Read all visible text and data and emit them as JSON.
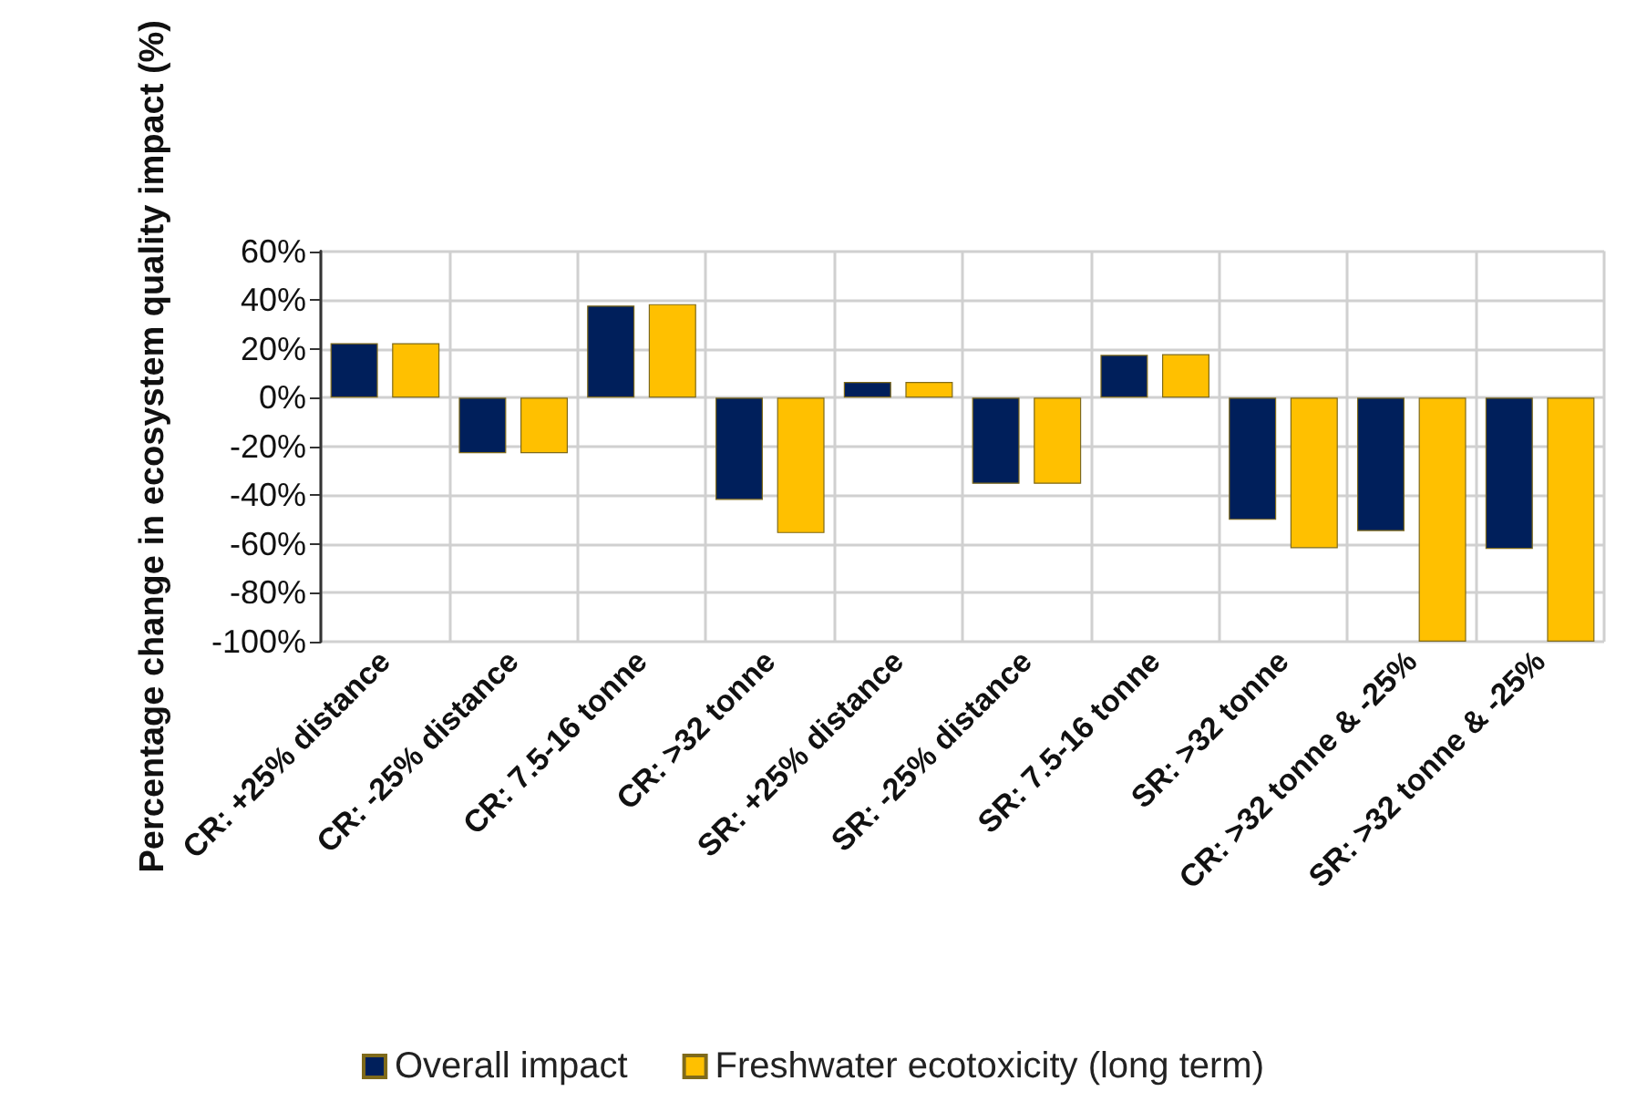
{
  "chart_data": {
    "type": "bar",
    "ylabel": "Percentage change in ecosystem quality impact (%)",
    "categories": [
      "CR: +25% distance",
      "CR: -25% distance",
      "CR: 7.5-16 tonne",
      "CR: >32 tonne",
      "SR: +25% distance",
      "SR: -25% distance",
      "SR: 7.5-16 tonne",
      "SR: >32 tonne",
      "CR: >32 tonne & -25%",
      "SR: >32 tonne & -25%"
    ],
    "series": [
      {
        "name": "Overall impact",
        "color": "#001f5b",
        "values": [
          22.3,
          -22.8,
          37.7,
          -41.9,
          6.4,
          -35.3,
          17.5,
          -50.1,
          -54.7,
          -62.0
        ]
      },
      {
        "name": "Freshwater ecotoxicity (long term)",
        "color": "#ffc000",
        "values": [
          22.3,
          -22.8,
          38.3,
          -55.5,
          6.4,
          -35.3,
          17.8,
          -61.7,
          -100,
          -100
        ]
      }
    ],
    "ylim": [
      -100,
      60
    ],
    "yticks": [
      {
        "value": -100,
        "label": "-100%"
      },
      {
        "value": -80,
        "label": "-80%"
      },
      {
        "value": -60,
        "label": "-60%"
      },
      {
        "value": -40,
        "label": "-40%"
      },
      {
        "value": -20,
        "label": "-20%"
      },
      {
        "value": 0,
        "label": "0%"
      },
      {
        "value": 20,
        "label": "20%"
      },
      {
        "value": 40,
        "label": "40%"
      },
      {
        "value": 60,
        "label": "60%"
      }
    ],
    "grid": true,
    "legend": "bottom"
  }
}
